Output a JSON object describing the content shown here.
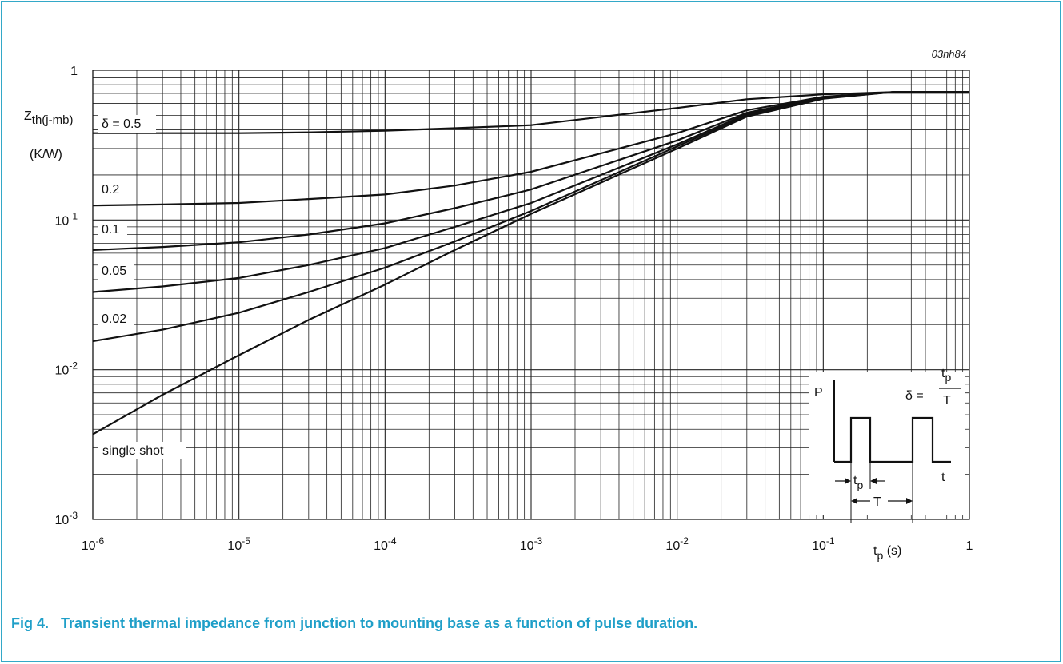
{
  "figure_id": "03nh84",
  "caption": "Fig 4.   Transient thermal impedance from junction to mounting base as a function of pulse duration.",
  "chart_data": {
    "type": "line",
    "xscale": "log",
    "yscale": "log",
    "xlim": [
      1e-06,
      1
    ],
    "ylim": [
      0.001,
      1
    ],
    "grid": true,
    "ylabel": {
      "main": "Z",
      "sub": "th(j-mb)",
      "unit": "(K/W)"
    },
    "xlabel": {
      "main": "t",
      "sub": "p",
      "unit": " (s)"
    },
    "xticks": [
      {
        "value": 1e-06,
        "base": "10",
        "exp": "-6"
      },
      {
        "value": 1e-05,
        "base": "10",
        "exp": "-5"
      },
      {
        "value": 0.0001,
        "base": "10",
        "exp": "-4"
      },
      {
        "value": 0.001,
        "base": "10",
        "exp": "-3"
      },
      {
        "value": 0.01,
        "base": "10",
        "exp": "-2"
      },
      {
        "value": 0.1,
        "base": "10",
        "exp": "-1"
      },
      {
        "value": 1,
        "base": "1",
        "exp": ""
      }
    ],
    "yticks": [
      {
        "value": 1,
        "base": "1",
        "exp": ""
      },
      {
        "value": 0.1,
        "base": "10",
        "exp": "-1"
      },
      {
        "value": 0.01,
        "base": "10",
        "exp": "-2"
      },
      {
        "value": 0.001,
        "base": "10",
        "exp": "-3"
      }
    ],
    "x": [
      1e-06,
      3e-06,
      1e-05,
      3e-05,
      0.0001,
      0.0003,
      0.001,
      0.01,
      0.03,
      0.1,
      0.3,
      1
    ],
    "series": [
      {
        "name": "δ = 0.5",
        "values": [
          0.38,
          0.38,
          0.38,
          0.385,
          0.395,
          0.41,
          0.43,
          0.56,
          0.64,
          0.69,
          0.715,
          0.715
        ]
      },
      {
        "name": "0.2",
        "values": [
          0.125,
          0.127,
          0.13,
          0.138,
          0.148,
          0.17,
          0.21,
          0.38,
          0.54,
          0.665,
          0.715,
          0.715
        ]
      },
      {
        "name": "0.1",
        "values": [
          0.063,
          0.066,
          0.071,
          0.08,
          0.095,
          0.12,
          0.16,
          0.34,
          0.52,
          0.66,
          0.715,
          0.715
        ]
      },
      {
        "name": "0.05",
        "values": [
          0.033,
          0.036,
          0.041,
          0.05,
          0.065,
          0.09,
          0.13,
          0.32,
          0.51,
          0.655,
          0.715,
          0.715
        ]
      },
      {
        "name": "0.02",
        "values": [
          0.0155,
          0.0185,
          0.024,
          0.033,
          0.048,
          0.072,
          0.115,
          0.31,
          0.5,
          0.65,
          0.715,
          0.715
        ]
      },
      {
        "name": "single shot",
        "values": [
          0.0037,
          0.0068,
          0.0125,
          0.0215,
          0.037,
          0.063,
          0.11,
          0.3,
          0.49,
          0.645,
          0.715,
          0.715
        ]
      }
    ],
    "inset": {
      "power_label": "P",
      "time_label": "t",
      "tp_main": "t",
      "tp_sub": "p",
      "period_label": "T",
      "formula_lhs": "δ =",
      "formula_num_main": "t",
      "formula_num_sub": "p",
      "formula_den": "T"
    }
  }
}
